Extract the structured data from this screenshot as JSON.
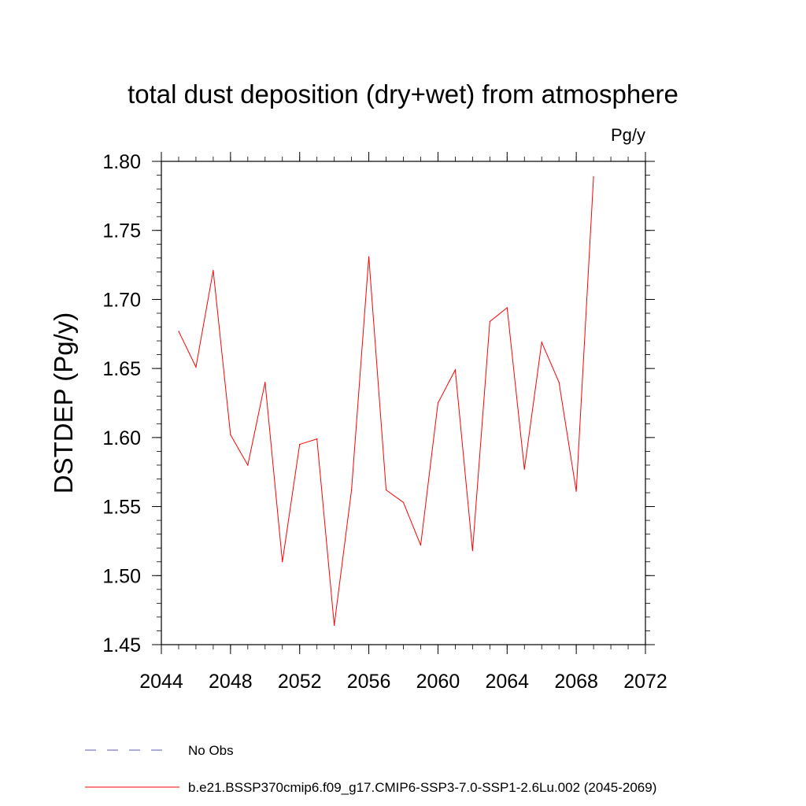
{
  "chart_data": {
    "type": "line",
    "title": "total dust deposition (dry+wet) from atmosphere",
    "units_label": "Pg/y",
    "ylabel": "DSTDEP  (Pg/y)",
    "xlabel": "",
    "xlim": [
      2044,
      2072
    ],
    "ylim": [
      1.45,
      1.8
    ],
    "x_ticks": [
      2044,
      2048,
      2052,
      2056,
      2060,
      2064,
      2068,
      2072
    ],
    "x_tick_labels": [
      "2044",
      "2048",
      "2052",
      "2056",
      "2060",
      "2064",
      "2068",
      "2072"
    ],
    "y_ticks": [
      1.45,
      1.5,
      1.55,
      1.6,
      1.65,
      1.7,
      1.75,
      1.8
    ],
    "y_tick_labels": [
      "1.45",
      "1.50",
      "1.55",
      "1.60",
      "1.65",
      "1.70",
      "1.75",
      "1.80"
    ],
    "grid": false,
    "series": [
      {
        "name": "b.e21.BSSP370cmip6.f09_g17.CMIP6-SSP3-7.0-SSP1-2.6Lu.002 (2045-2069)",
        "color": "#ff0000",
        "x": [
          2045,
          2046,
          2047,
          2048,
          2049,
          2050,
          2051,
          2052,
          2053,
          2054,
          2055,
          2056,
          2057,
          2058,
          2059,
          2060,
          2061,
          2062,
          2063,
          2064,
          2065,
          2066,
          2067,
          2068,
          2069
        ],
        "values": [
          1.677,
          1.651,
          1.721,
          1.602,
          1.58,
          1.64,
          1.51,
          1.595,
          1.599,
          1.464,
          1.562,
          1.731,
          1.562,
          1.553,
          1.522,
          1.625,
          1.649,
          1.518,
          1.684,
          1.694,
          1.577,
          1.669,
          1.64,
          1.561,
          1.789
        ]
      }
    ],
    "legend": {
      "position": "bottom",
      "entries": [
        {
          "label": "No Obs",
          "color": "#5a5aa8",
          "style": "dashed"
        },
        {
          "label": "b.e21.BSSP370cmip6.f09_g17.CMIP6-SSP3-7.0-SSP1-2.6Lu.002 (2045-2069)",
          "color": "#ff0000",
          "style": "solid"
        }
      ]
    }
  }
}
